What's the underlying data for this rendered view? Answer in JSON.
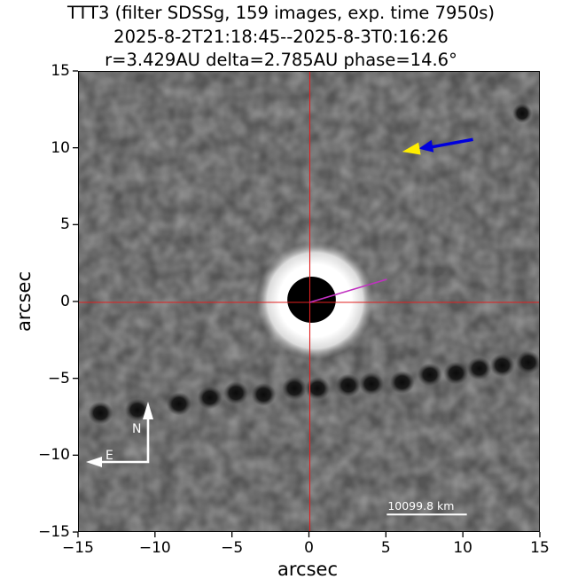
{
  "chart_data": {
    "type": "image",
    "title": "TTT3 (filter SDSSg, 159 images, exp. time 7950s)",
    "subtitle_lines": [
      "2025-8-2T21:18:45--2025-8-3T0:16:26",
      "r=3.429AU delta=2.785AU phase=14.6°"
    ],
    "xlabel": "arcsec",
    "ylabel": "arcsec",
    "xlim": [
      -15,
      15
    ],
    "ylim": [
      -15,
      15
    ],
    "xticks": [
      -15,
      -10,
      -5,
      0,
      5,
      10,
      15
    ],
    "yticks": [
      15,
      10,
      5,
      0,
      -5,
      -10,
      -15
    ],
    "xtick_labels": [
      "−15",
      "−10",
      "−5",
      "0",
      "5",
      "10",
      "15"
    ],
    "ytick_labels": [
      "15",
      "10",
      "5",
      "0",
      "−5",
      "−10",
      "−15"
    ],
    "grid": false,
    "colormap": "grayscale",
    "crosshair": {
      "x": 0,
      "y": 0,
      "color": "#e02020"
    },
    "target": {
      "x": 0,
      "y": 0,
      "core_radius_arcsec": 1.5,
      "halo_radius_arcsec": 3.3
    },
    "annotations": {
      "sun_direction_arrow": {
        "color": "#ffee00",
        "tip": [
          6.0,
          9.8
        ]
      },
      "motion_arrow": {
        "color": "#0000dd",
        "from": [
          10.6,
          10.6
        ],
        "to": [
          7.3,
          10.0
        ]
      },
      "magenta_line": {
        "color": "#c030c0",
        "from": [
          0,
          0
        ],
        "to": [
          5.0,
          1.5
        ]
      },
      "compass": {
        "north_label": "N",
        "east_label": "E",
        "color": "#ffffff"
      },
      "scale_bar": {
        "label": "10099.8 km",
        "from_x": 5,
        "to_x": 10.2,
        "y": -13.8,
        "color": "#ffffff"
      }
    },
    "star_trail": {
      "points": [
        [
          -13.6,
          -7.2
        ],
        [
          -11.2,
          -7.0
        ],
        [
          -8.5,
          -6.6
        ],
        [
          -6.5,
          -6.2
        ],
        [
          -4.8,
          -5.9
        ],
        [
          -3.0,
          -6.0
        ],
        [
          -1.0,
          -5.6
        ],
        [
          0.5,
          -5.6
        ],
        [
          2.5,
          -5.4
        ],
        [
          4.0,
          -5.3
        ],
        [
          6.0,
          -5.2
        ],
        [
          7.8,
          -4.7
        ],
        [
          9.5,
          -4.6
        ],
        [
          11.0,
          -4.3
        ],
        [
          12.5,
          -4.1
        ],
        [
          14.2,
          -3.9
        ]
      ]
    },
    "field_star": {
      "x": 13.8,
      "y": 12.3
    }
  }
}
